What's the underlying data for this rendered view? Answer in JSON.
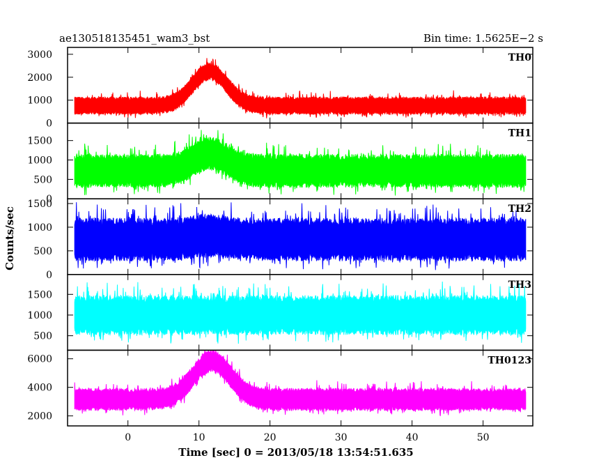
{
  "chart_data": {
    "type": "line",
    "title_left": "ae130518135451_wam3_bst",
    "title_right": "Bin time: 1.5625E−2  s",
    "xlabel": "Time [sec] 0 = 2013/05/18 13:54:51.635",
    "ylabel": "Counts/sec",
    "xlim": [
      -8.5,
      57
    ],
    "x_range_data": [
      -7.5,
      56
    ],
    "x_ticks": [
      0,
      10,
      20,
      30,
      40,
      50
    ],
    "x_tick_labels": [
      "0",
      "10",
      "20",
      "30",
      "40",
      "50"
    ],
    "grid": false,
    "panels": [
      {
        "name": "TH0",
        "color": "#ff0000",
        "ylim": [
          0,
          3300
        ],
        "y_ticks": [
          0,
          1000,
          2000,
          3000
        ],
        "y_tick_labels": [
          "0",
          "1000",
          "2000",
          "3000"
        ],
        "baseline_mean": 760,
        "noise_amplitude": 320,
        "peak_time": 11.5,
        "peak_height": 1500,
        "peak_width": 2.4
      },
      {
        "name": "TH1",
        "color": "#00ff00",
        "ylim": [
          0,
          1950
        ],
        "y_ticks": [
          0,
          500,
          1000,
          1500
        ],
        "y_tick_labels": [
          "0",
          "500",
          "1000",
          "1500"
        ],
        "baseline_mean": 720,
        "noise_amplitude": 360,
        "peak_time": 11.5,
        "peak_height": 450,
        "peak_width": 2.4
      },
      {
        "name": "TH2",
        "color": "#0000ff",
        "ylim": [
          0,
          1600
        ],
        "y_ticks": [
          0,
          500,
          1000,
          1500
        ],
        "y_tick_labels": [
          "0",
          "500",
          "1000",
          "1500"
        ],
        "baseline_mean": 740,
        "noise_amplitude": 380,
        "peak_time": 11.5,
        "peak_height": 80,
        "peak_width": 2.4
      },
      {
        "name": "TH3",
        "color": "#00ffff",
        "ylim": [
          150,
          1980
        ],
        "y_ticks": [
          500,
          1000,
          1500
        ],
        "y_tick_labels": [
          "500",
          "1000",
          "1500"
        ],
        "baseline_mean": 1000,
        "noise_amplitude": 400,
        "peak_time": 11.5,
        "peak_height": 0,
        "peak_width": 2.4
      },
      {
        "name": "TH0123",
        "color": "#ff00ff",
        "ylim": [
          1300,
          6600
        ],
        "y_ticks": [
          2000,
          4000,
          6000
        ],
        "y_tick_labels": [
          "2000",
          "4000",
          "6000"
        ],
        "baseline_mean": 3150,
        "noise_amplitude": 650,
        "peak_time": 11.8,
        "peak_height": 2700,
        "peak_width": 2.6
      }
    ]
  }
}
